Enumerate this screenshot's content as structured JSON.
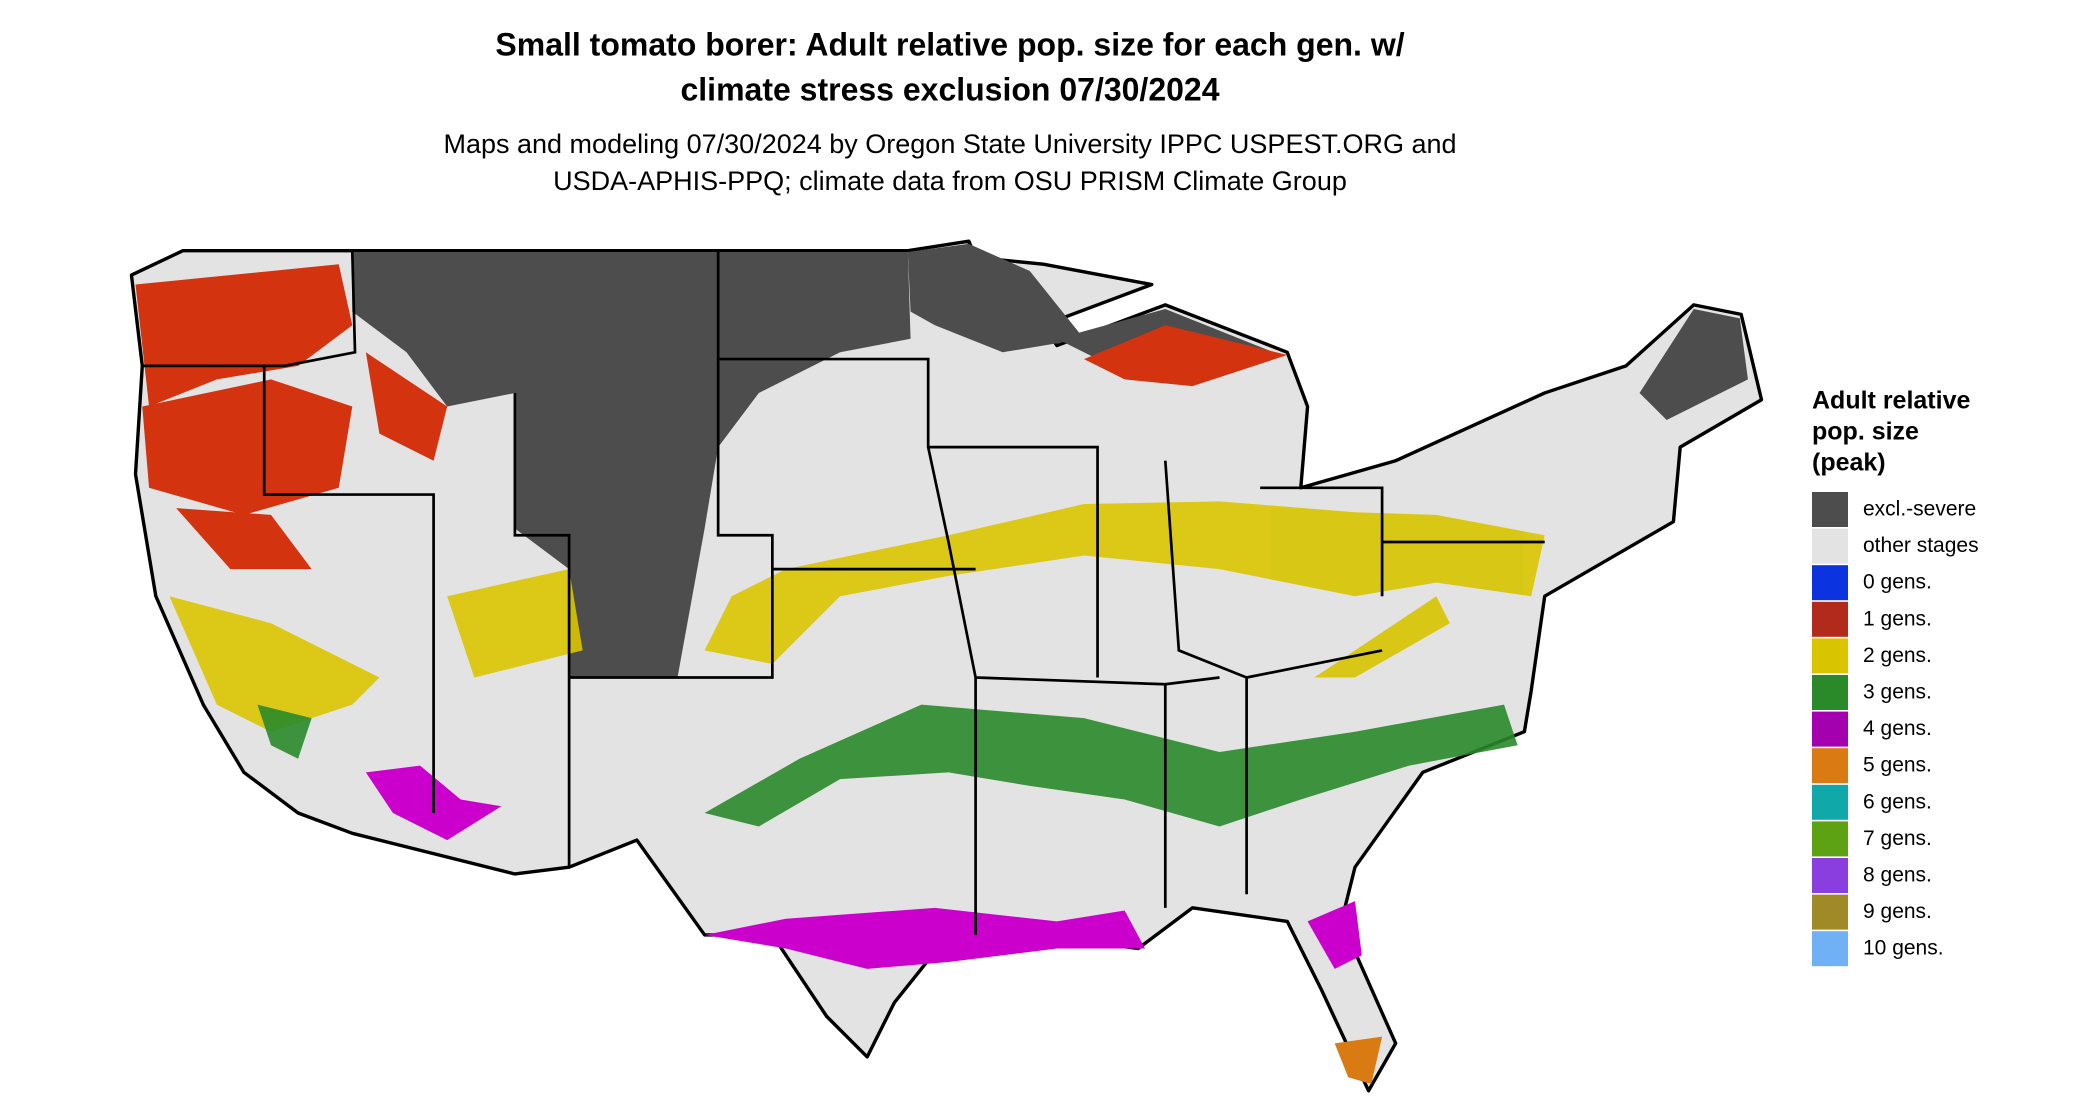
{
  "header": {
    "title": [
      "Small tomato borer: Adult relative pop. size for each gen. w/",
      "climate stress exclusion 07/30/2024"
    ],
    "subtitle": [
      "Maps and modeling 07/30/2024 by Oregon State University IPPC USPEST.ORG and",
      "USDA-APHIS-PPQ; climate data from OSU PRISM Climate Group"
    ]
  },
  "legend": {
    "title": [
      "Adult relative",
      "pop. size",
      "(peak)"
    ],
    "items": [
      {
        "label": "excl.-severe",
        "color": "#4d4d4d"
      },
      {
        "label": "other stages",
        "color": "#e3e3e3"
      },
      {
        "label": "0 gens.",
        "color": "#0b33e0"
      },
      {
        "label": "1 gens.",
        "color": "#b22a1c"
      },
      {
        "label": "2 gens.",
        "color": "#d9c400"
      },
      {
        "label": "3 gens.",
        "color": "#2a8a2a"
      },
      {
        "label": "4 gens.",
        "color": "#a400b0"
      },
      {
        "label": "5 gens.",
        "color": "#d97a12"
      },
      {
        "label": "6 gens.",
        "color": "#10a8a8"
      },
      {
        "label": "7 gens.",
        "color": "#5ca212"
      },
      {
        "label": "8 gens.",
        "color": "#8a3ee0"
      },
      {
        "label": "9 gens.",
        "color": "#a08a28"
      },
      {
        "label": "10 gens.",
        "color": "#70b0f4"
      }
    ]
  }
}
